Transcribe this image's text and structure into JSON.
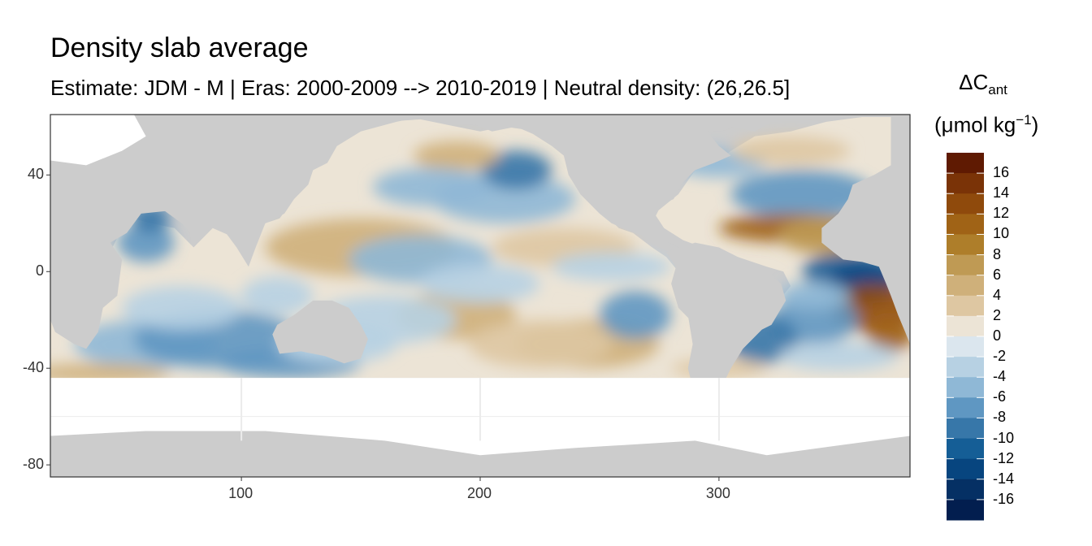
{
  "title": "Density slab average",
  "subtitle": "Estimate: JDM - M | Eras: 2000-2009 --> 2010-2019 | Neutral density: (26,26.5]",
  "legend": {
    "title_symbol": "ΔC",
    "title_sub": "ant",
    "units_prefix": "(μmol kg",
    "units_sup": "−1",
    "units_suffix": ")",
    "ticks": [
      "16",
      "14",
      "12",
      "10",
      "8",
      "6",
      "4",
      "2",
      "0",
      "-2",
      "-4",
      "-6",
      "-8",
      "-10",
      "-12",
      "-14",
      "-16"
    ],
    "colors": [
      "#5f1a02",
      "#7a3307",
      "#8f4a0c",
      "#a06316",
      "#ae7e2a",
      "#bf9a54",
      "#cfb07a",
      "#dec7a2",
      "#ece4d6",
      "#dbe6ee",
      "#b7d1e3",
      "#8fb8d6",
      "#5f97c2",
      "#3777a9",
      "#155e96",
      "#07457f",
      "#053064",
      "#021e4f"
    ]
  },
  "chart_data": {
    "type": "heatmap",
    "title": "Density slab average",
    "subtitle": "Estimate: JDM - M | Eras: 2000-2009 --> 2010-2019 | Neutral density: (26,26.5]",
    "xlabel": "",
    "ylabel": "",
    "xlim": [
      20,
      380
    ],
    "ylim": [
      -85,
      65
    ],
    "x_ticks": [
      100,
      200,
      300
    ],
    "y_ticks": [
      40,
      0,
      -40,
      -80
    ],
    "legend_position": "right",
    "colorbar_range": [
      -18,
      18
    ],
    "colorbar_step": 2,
    "land_color": "#cccccc",
    "grid": true
  }
}
